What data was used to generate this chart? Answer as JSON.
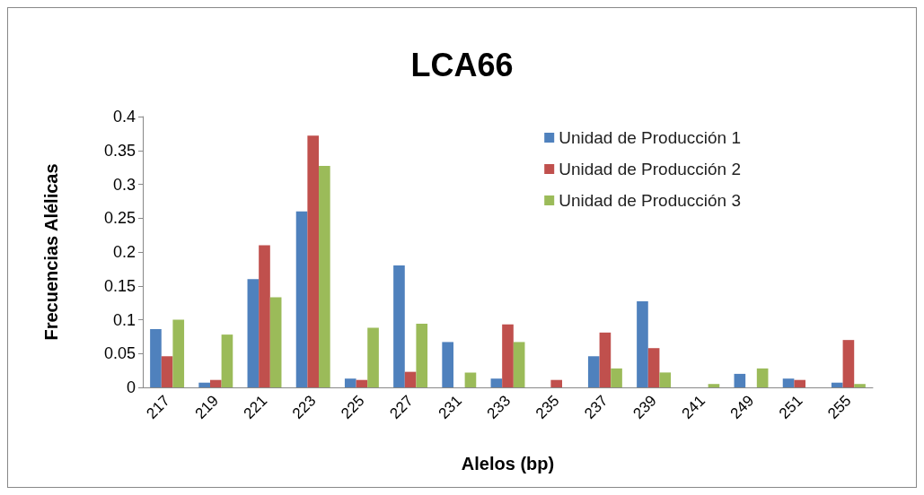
{
  "chart_data": {
    "type": "bar",
    "title": "LCA66",
    "xlabel": "Alelos (bp)",
    "ylabel": "Frecuencias Alélicas",
    "categories": [
      "217",
      "219",
      "221",
      "223",
      "225",
      "227",
      "231",
      "233",
      "235",
      "237",
      "239",
      "241",
      "249",
      "251",
      "255"
    ],
    "series": [
      {
        "name": "Unidad de Producción 1",
        "color": "#4f81bd",
        "values": [
          0.086,
          0.007,
          0.16,
          0.26,
          0.013,
          0.18,
          0.067,
          0.013,
          0,
          0.046,
          0.127,
          0,
          0.02,
          0.013,
          0.007
        ]
      },
      {
        "name": "Unidad de Producción 2",
        "color": "#c0504d",
        "values": [
          0.046,
          0.011,
          0.21,
          0.372,
          0.011,
          0.023,
          0,
          0.093,
          0.011,
          0.081,
          0.058,
          0,
          0,
          0.011,
          0.07
        ]
      },
      {
        "name": "Unidad de Producción 3",
        "color": "#9bbb59",
        "values": [
          0.1,
          0.078,
          0.133,
          0.327,
          0.088,
          0.094,
          0.022,
          0.067,
          0,
          0.028,
          0.022,
          0.005,
          0.028,
          0,
          0.005
        ]
      }
    ],
    "ylim": [
      0,
      0.4
    ],
    "yticks": [
      0,
      0.05,
      0.1,
      0.15,
      0.2,
      0.25,
      0.3,
      0.35,
      0.4
    ],
    "grid": false,
    "legend": "top right"
  }
}
